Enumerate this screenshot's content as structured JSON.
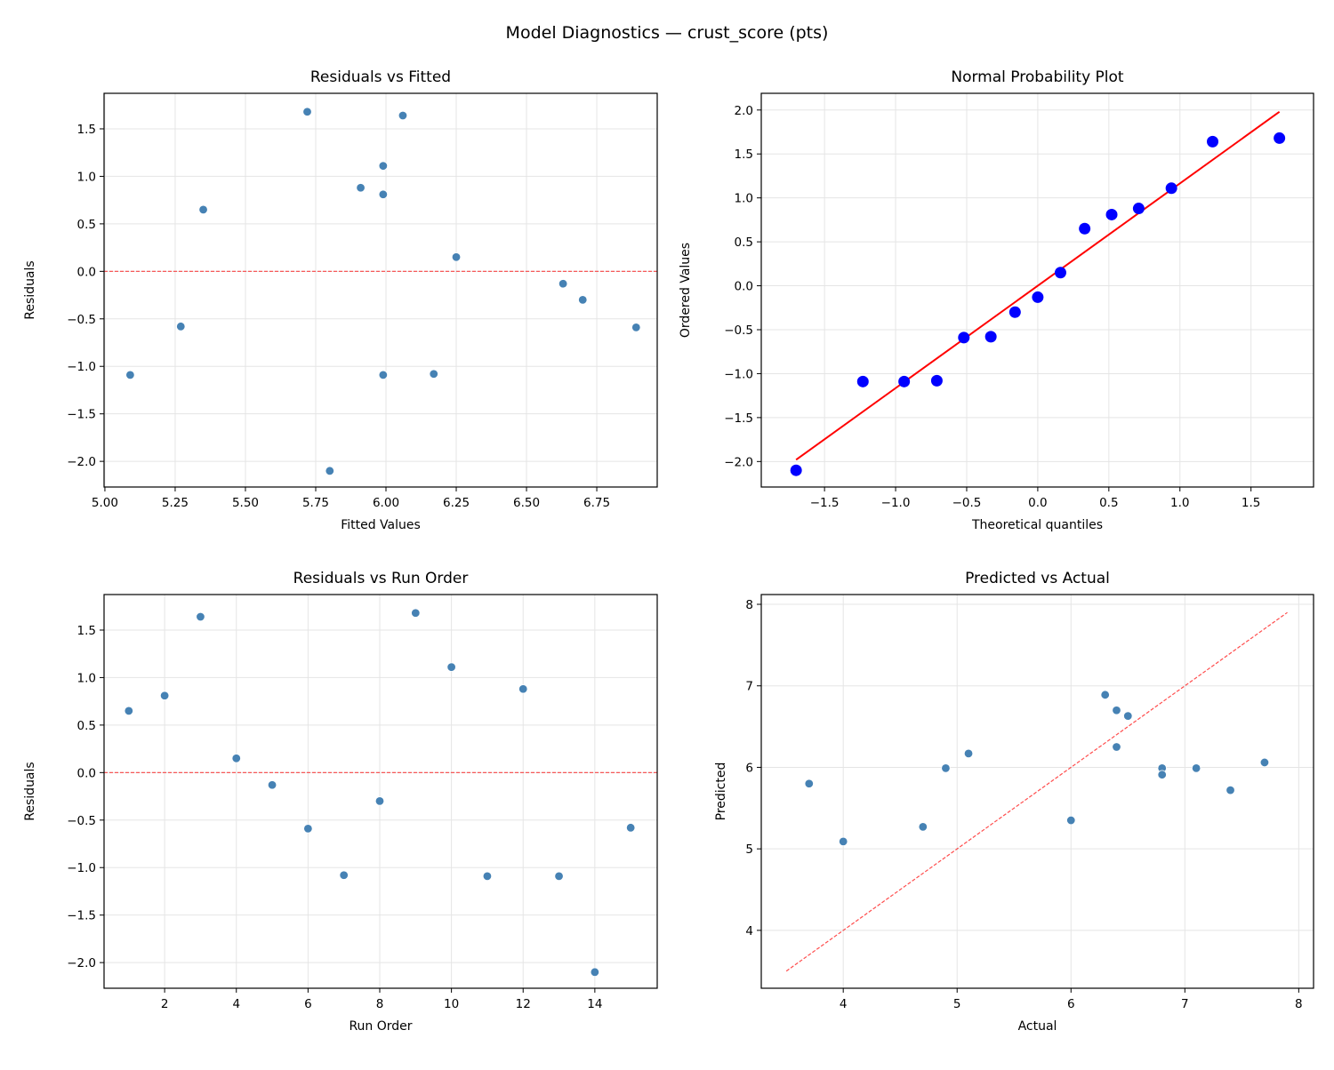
{
  "suptitle": "Model Diagnostics — crust_score (pts)",
  "colors": {
    "point": "#4682b4",
    "qq_point": "#0000ff",
    "ref_line": "#ff0000",
    "grid": "#e5e5e5"
  },
  "chart_data": [
    {
      "type": "scatter",
      "title": "Residuals vs Fitted",
      "xlabel": "Fitted Values",
      "ylabel": "Residuals",
      "xlim": [
        4.997,
        6.965
      ],
      "ylim": [
        -2.27,
        1.874
      ],
      "xticks": [
        "5.00",
        "5.25",
        "5.50",
        "5.75",
        "6.00",
        "6.25",
        "6.50",
        "6.75"
      ],
      "yticks": [
        "-2.0",
        "-1.5",
        "-1.0",
        "-0.5",
        "0.0",
        "0.5",
        "1.0",
        "1.5"
      ],
      "grid": true,
      "hline": 0,
      "x": [
        5.35,
        5.99,
        6.06,
        6.25,
        6.63,
        6.89,
        6.17,
        6.7,
        5.72,
        5.99,
        5.09,
        5.91,
        5.99,
        5.8,
        5.27
      ],
      "y": [
        0.65,
        0.81,
        1.64,
        0.15,
        -0.13,
        -0.59,
        -1.08,
        -0.3,
        1.68,
        1.11,
        -1.09,
        0.88,
        -1.09,
        -2.1,
        -0.58
      ]
    },
    {
      "type": "scatter",
      "title": "Normal Probability Plot",
      "xlabel": "Theoretical quantiles",
      "ylabel": "Ordered Values",
      "xlim": [
        -1.945,
        1.94
      ],
      "ylim": [
        -2.29,
        2.19
      ],
      "xticks": [
        "-1.5",
        "-1.0",
        "-0.5",
        "0.0",
        "0.5",
        "1.0",
        "1.5"
      ],
      "yticks": [
        "-2.0",
        "-1.5",
        "-1.0",
        "-0.5",
        "0.0",
        "0.5",
        "1.0",
        "1.5",
        "2.0"
      ],
      "grid": true,
      "x": [
        -1.7,
        -1.23,
        -0.94,
        -0.71,
        -0.52,
        -0.33,
        -0.16,
        0.0,
        0.16,
        0.33,
        0.52,
        0.71,
        0.94,
        1.23,
        1.7
      ],
      "y": [
        -2.1,
        -1.09,
        -1.09,
        -1.08,
        -0.59,
        -0.58,
        -0.3,
        -0.13,
        0.15,
        0.65,
        0.81,
        0.88,
        1.11,
        1.64,
        1.68
      ],
      "fit_line": {
        "x": [
          -1.7,
          1.7
        ],
        "y": [
          -1.98,
          1.98
        ]
      }
    },
    {
      "type": "scatter",
      "title": "Residuals vs Run Order",
      "xlabel": "Run Order",
      "ylabel": "Residuals",
      "xlim": [
        0.31,
        15.74
      ],
      "ylim": [
        -2.27,
        1.874
      ],
      "xticks": [
        "2",
        "4",
        "6",
        "8",
        "10",
        "12",
        "14"
      ],
      "yticks": [
        "-2.0",
        "-1.5",
        "-1.0",
        "-0.5",
        "0.0",
        "0.5",
        "1.0",
        "1.5"
      ],
      "grid": true,
      "hline": 0,
      "x": [
        1,
        2,
        3,
        4,
        5,
        6,
        7,
        8,
        9,
        10,
        11,
        12,
        13,
        14,
        15
      ],
      "y": [
        0.65,
        0.81,
        1.64,
        0.15,
        -0.13,
        -0.59,
        -1.08,
        -0.3,
        1.68,
        1.11,
        -1.09,
        0.88,
        -1.09,
        -2.1,
        -0.58
      ]
    },
    {
      "type": "scatter",
      "title": "Predicted vs Actual",
      "xlabel": "Actual",
      "ylabel": "Predicted",
      "xlim": [
        3.28,
        8.13
      ],
      "ylim": [
        3.29,
        8.12
      ],
      "xticks": [
        "4",
        "5",
        "6",
        "7",
        "8"
      ],
      "yticks": [
        "4",
        "5",
        "6",
        "7",
        "8"
      ],
      "grid": true,
      "diagonal": {
        "x": [
          3.5,
          7.9
        ],
        "y": [
          3.5,
          7.9
        ]
      },
      "x": [
        6.0,
        6.8,
        7.7,
        6.4,
        6.5,
        6.3,
        5.1,
        6.4,
        7.4,
        7.1,
        4.0,
        6.8,
        4.9,
        3.7,
        4.7
      ],
      "y": [
        5.35,
        5.99,
        6.06,
        6.25,
        6.63,
        6.89,
        6.17,
        6.7,
        5.72,
        5.99,
        5.09,
        5.91,
        5.99,
        5.8,
        5.27
      ]
    }
  ]
}
